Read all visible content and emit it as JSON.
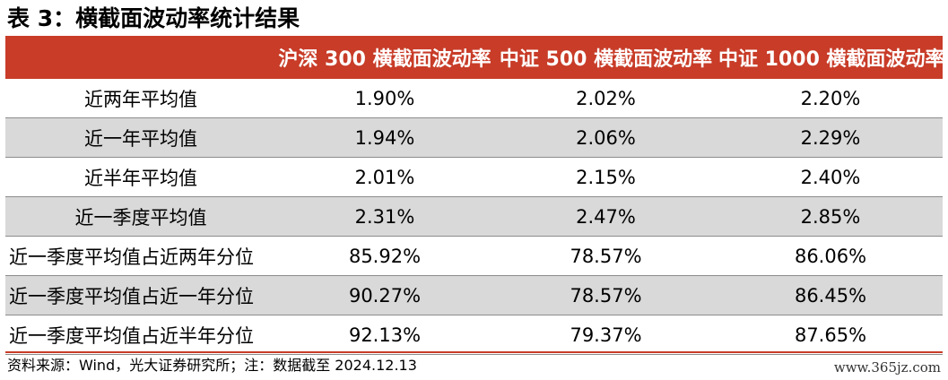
{
  "title": "表 3：横截面波动率统计结果",
  "table": {
    "headers": [
      "",
      "沪深 300 横截面波动率",
      "中证 500 横截面波动率",
      "中证 1000 横截面波动率"
    ],
    "rows": [
      {
        "label": "近两年平均值",
        "values": [
          "1.90%",
          "2.02%",
          "2.20%"
        ]
      },
      {
        "label": "近一年平均值",
        "values": [
          "1.94%",
          "2.06%",
          "2.29%"
        ]
      },
      {
        "label": "近半年平均值",
        "values": [
          "2.01%",
          "2.15%",
          "2.40%"
        ]
      },
      {
        "label": "近一季度平均值",
        "values": [
          "2.31%",
          "2.47%",
          "2.85%"
        ]
      },
      {
        "label": "近一季度平均值占近两年分位",
        "values": [
          "85.92%",
          "78.57%",
          "86.06%"
        ]
      },
      {
        "label": "近一季度平均值占近一年分位",
        "values": [
          "90.27%",
          "78.57%",
          "86.45%"
        ]
      },
      {
        "label": "近一季度平均值占近半年分位",
        "values": [
          "92.13%",
          "79.37%",
          "87.65%"
        ]
      }
    ]
  },
  "source": "资料来源：Wind，光大证券研究所；注：数据截至 2024.12.13",
  "watermark": "www.365jz.com",
  "colors": {
    "header_bg": "#c83c28",
    "header_text": "#ffffff",
    "row_shade": "#d9d9d9"
  }
}
